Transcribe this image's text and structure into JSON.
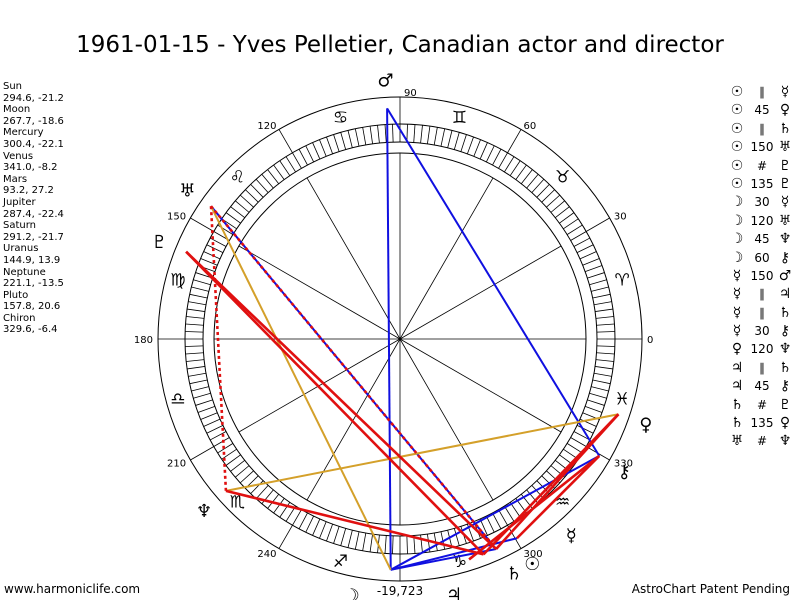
{
  "title": "1961-01-15 - Yves Pelletier, Canadian actor and director",
  "positions": [
    {
      "name": "Sun",
      "coords": "294.6, -21.2"
    },
    {
      "name": "Moon",
      "coords": "267.7, -18.6"
    },
    {
      "name": "Mercury",
      "coords": "300.4, -22.1"
    },
    {
      "name": "Venus",
      "coords": "341.0, -8.2"
    },
    {
      "name": "Mars",
      "coords": "93.2, 27.2"
    },
    {
      "name": "Jupiter",
      "coords": "287.4, -22.4"
    },
    {
      "name": "Saturn",
      "coords": "291.2, -21.7"
    },
    {
      "name": "Uranus",
      "coords": "144.9, 13.9"
    },
    {
      "name": "Neptune",
      "coords": "221.1, -13.5"
    },
    {
      "name": "Pluto",
      "coords": "157.8, 20.6"
    },
    {
      "name": "Chiron",
      "coords": "329.6, -6.4"
    }
  ],
  "glyphs": {
    "Sun": "☉",
    "Moon": "☽",
    "Mercury": "☿",
    "Venus": "♀",
    "Mars": "♂",
    "Jupiter": "♃",
    "Saturn": "♄",
    "Uranus": "♅",
    "Neptune": "♆",
    "Pluto": "♇",
    "Chiron": "⚷"
  },
  "signs": [
    "♈",
    "♉",
    "♊",
    "♋",
    "♌",
    "♍",
    "♎",
    "♏",
    "♐",
    "♑",
    "♒",
    "♓"
  ],
  "degree_labels": [
    "0",
    "30",
    "60",
    "90",
    "120",
    "150",
    "180",
    "210",
    "240",
    "270",
    "300",
    "330"
  ],
  "bottom_label": "-19,723",
  "aspects": [
    {
      "p1": "Sun",
      "aspect": "∥",
      "p2": "Mercury"
    },
    {
      "p1": "Sun",
      "aspect": "45",
      "p2": "Venus"
    },
    {
      "p1": "Sun",
      "aspect": "∥",
      "p2": "Saturn"
    },
    {
      "p1": "Sun",
      "aspect": "150",
      "p2": "Uranus"
    },
    {
      "p1": "Sun",
      "aspect": "#",
      "p2": "Pluto"
    },
    {
      "p1": "Sun",
      "aspect": "135",
      "p2": "Pluto"
    },
    {
      "p1": "Moon",
      "aspect": "30",
      "p2": "Mercury"
    },
    {
      "p1": "Moon",
      "aspect": "120",
      "p2": "Uranus"
    },
    {
      "p1": "Moon",
      "aspect": "45",
      "p2": "Neptune"
    },
    {
      "p1": "Moon",
      "aspect": "60",
      "p2": "Chiron"
    },
    {
      "p1": "Mercury",
      "aspect": "150",
      "p2": "Mars"
    },
    {
      "p1": "Mercury",
      "aspect": "∥",
      "p2": "Jupiter"
    },
    {
      "p1": "Mercury",
      "aspect": "∥",
      "p2": "Saturn"
    },
    {
      "p1": "Mercury",
      "aspect": "30",
      "p2": "Chiron"
    },
    {
      "p1": "Venus",
      "aspect": "120",
      "p2": "Neptune"
    },
    {
      "p1": "Jupiter",
      "aspect": "∥",
      "p2": "Saturn"
    },
    {
      "p1": "Jupiter",
      "aspect": "45",
      "p2": "Chiron"
    },
    {
      "p1": "Saturn",
      "aspect": "#",
      "p2": "Pluto"
    },
    {
      "p1": "Saturn",
      "aspect": "135",
      "p2": "Venus"
    },
    {
      "p1": "Uranus",
      "aspect": "#",
      "p2": "Neptune"
    }
  ],
  "aspect_lines": [
    {
      "from": "Mars",
      "to": "Chiron",
      "color": "#1010e0",
      "style": "solid"
    },
    {
      "from": "Mars",
      "to": "Moon",
      "color": "#1010e0",
      "style": "solid"
    },
    {
      "from": "Uranus",
      "to": "Sun",
      "color": "#1010e0",
      "style": "solid"
    },
    {
      "from": "Moon",
      "to": "Chiron",
      "color": "#1010e0",
      "style": "solid"
    },
    {
      "from": "Moon",
      "to": "Sun",
      "color": "#1010e0",
      "style": "solid"
    },
    {
      "from": "Mercury",
      "to": "Moon",
      "color": "#1010e0",
      "style": "solid"
    },
    {
      "from": "Uranus",
      "to": "Moon",
      "color": "#d4a02a",
      "style": "solid"
    },
    {
      "from": "Neptune",
      "to": "Venus",
      "color": "#d4a02a",
      "style": "solid"
    },
    {
      "from": "Pluto",
      "to": "Sun",
      "color": "#e01010",
      "style": "solid"
    },
    {
      "from": "Pluto",
      "to": "Saturn",
      "color": "#e01010",
      "style": "solid"
    },
    {
      "from": "Uranus",
      "to": "Sun",
      "color": "#e01010",
      "style": "dotted"
    },
    {
      "from": "Uranus",
      "to": "Neptune",
      "color": "#e01010",
      "style": "dotted"
    },
    {
      "from": "Neptune",
      "to": "Saturn",
      "color": "#e01010",
      "style": "solid"
    },
    {
      "from": "Venus",
      "to": "Sun",
      "color": "#e01010",
      "style": "solid"
    },
    {
      "from": "Venus",
      "to": "Saturn",
      "color": "#e01010",
      "style": "solid"
    },
    {
      "from": "Chiron",
      "to": "Jupiter",
      "color": "#e01010",
      "style": "solid"
    },
    {
      "from": "Chiron",
      "to": "Mercury",
      "color": "#e01010",
      "style": "solid"
    }
  ],
  "footer": {
    "left": "www.harmoniclife.com",
    "right": "AstroChart Patent Pending"
  }
}
